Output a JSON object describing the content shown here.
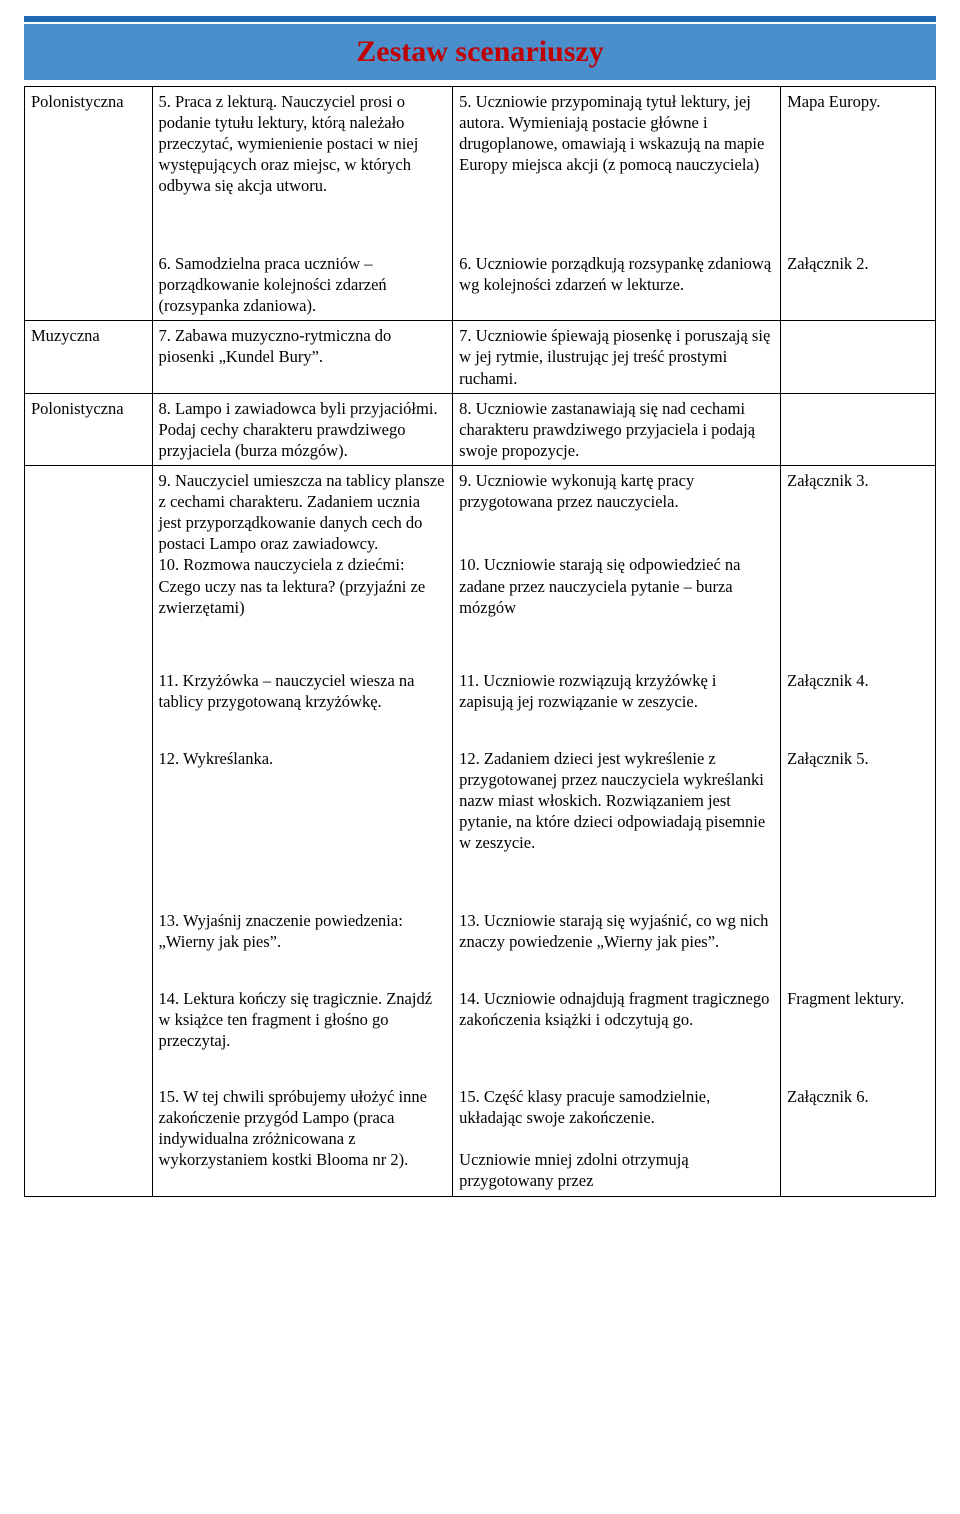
{
  "header": {
    "title": "Zestaw scenariuszy",
    "title_color": "#c00000",
    "band_color": "#4a8ecb",
    "stripe_color": "#1f6bb7"
  },
  "table": {
    "border_color": "#000000",
    "text_color": "#000000",
    "font_family": "Times New Roman",
    "font_size_pt": 12,
    "column_widths_pct": [
      14,
      33,
      36,
      17
    ],
    "rows": [
      {
        "c1": "Polonistyczna",
        "c2": [
          "5. Praca z lekturą. Nauczyciel prosi o podanie tytułu lektury, którą należało przeczytać, wymienienie postaci w niej występujących oraz miejsc, w których odbywa się akcja utworu.",
          "6. Samodzielna praca uczniów – porządkowanie kolejności zdarzeń (rozsypanka zdaniowa)."
        ],
        "c3": [
          "5. Uczniowie przypominają tytuł lektury, jej autora. Wymieniają postacie główne i drugoplanowe, omawiają i wskazują na mapie Europy miejsca akcji (z pomocą nauczyciela)",
          "6. Uczniowie porządkują rozsypankę zdaniową wg kolejności zdarzeń w lekturze."
        ],
        "c4": [
          "Mapa Europy.",
          "Załącznik 2."
        ]
      },
      {
        "c1": "Muzyczna",
        "c2": [
          "7. Zabawa muzyczno-rytmiczna do piosenki „Kundel Bury”."
        ],
        "c3": [
          "7. Uczniowie śpiewają piosenkę i poruszają się w jej rytmie, ilustrując jej treść prostymi ruchami."
        ],
        "c4": []
      },
      {
        "c1": "Polonistyczna",
        "c2": [
          "8. Lampo i zawiadowca byli przyjaciółmi. Podaj cechy charakteru prawdziwego przyjaciela (burza mózgów)."
        ],
        "c3": [
          "8. Uczniowie zastanawiają się nad cechami charakteru prawdziwego przyjaciela i podają swoje propozycje."
        ],
        "c4": []
      },
      {
        "c1": "",
        "c2": [
          "9. Nauczyciel umieszcza na tablicy plansze z cechami charakteru. Zadaniem ucznia jest przyporządkowanie danych cech do postaci Lampo oraz zawiadowcy.\n10. Rozmowa nauczyciela z dziećmi:\nCzego uczy nas ta lektura? (przyjaźni ze zwierzętami)",
          "11. Krzyżówka – nauczyciel wiesza na tablicy przygotowaną krzyżówkę.",
          "12. Wykreślanka.",
          "13. Wyjaśnij znaczenie powiedzenia: „Wierny jak pies”.",
          "14. Lektura kończy się tragicznie. Znajdź w książce ten fragment i głośno go przeczytaj.",
          "15. W tej chwili spróbujemy ułożyć inne zakończenie przygód Lampo (praca indywidualna zróżnicowana z wykorzystaniem kostki Blooma nr 2)."
        ],
        "c3": [
          "9. Uczniowie wykonują kartę pracy przygotowana przez nauczyciela.\n\n\n10. Uczniowie starają się odpowiedzieć na zadane przez nauczyciela pytanie – burza mózgów",
          "11. Uczniowie rozwiązują krzyżówkę i zapisują jej rozwiązanie w zeszycie.",
          "12. Zadaniem dzieci jest wykreślenie z przygotowanej przez nauczyciela wykreślanki nazw miast włoskich. Rozwiązaniem jest pytanie, na które dzieci odpowiadają pisemnie w zeszycie.",
          "13. Uczniowie starają się wyjaśnić, co wg nich znaczy powiedzenie „Wierny jak pies”.",
          "14. Uczniowie odnajdują fragment tragicznego zakończenia książki i odczytują go.",
          "15. Część klasy pracuje samodzielnie, układając swoje zakończenie.\n\nUczniowie mniej zdolni otrzymują przygotowany przez"
        ],
        "c4": [
          "Załącznik 3.",
          "Załącznik 4.",
          "Załącznik 5.",
          "",
          "Fragment lektury.",
          "Załącznik 6."
        ]
      }
    ]
  }
}
